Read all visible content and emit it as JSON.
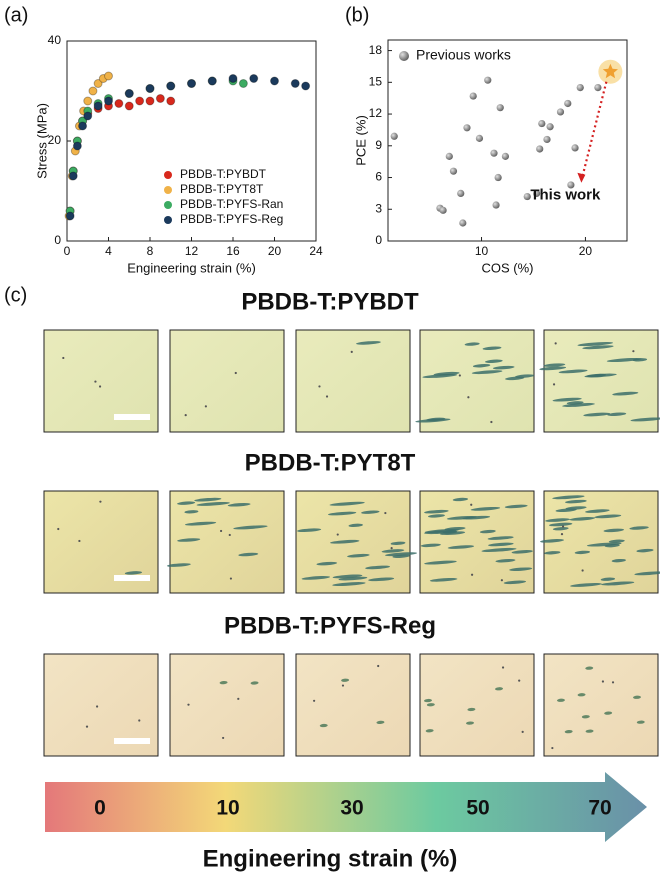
{
  "chart_data": [
    {
      "type": "scatter",
      "panel_label": "(a)",
      "x_label": "Engineering strain (%)",
      "y_label": "Stress (MPa)",
      "xlim": [
        0,
        24
      ],
      "xticks": [
        0,
        4,
        8,
        12,
        16,
        20,
        24
      ],
      "ylim": [
        0,
        40
      ],
      "yticks": [
        0,
        20,
        40
      ],
      "legend": "lower right",
      "series": [
        {
          "name": "PBDB-T:PYBDT",
          "color": "#d8281c",
          "x": [
            0.3,
            0.6,
            1,
            1.5,
            2,
            3,
            4,
            5,
            6,
            7,
            8,
            9,
            10
          ],
          "values": [
            6,
            14,
            20,
            24,
            25.5,
            26.5,
            27,
            27.5,
            27,
            28,
            28,
            28.5,
            28
          ]
        },
        {
          "name": "PBDB-T:PYT8T",
          "color": "#f0b248",
          "x": [
            0.2,
            0.5,
            0.8,
            1.2,
            1.6,
            2,
            2.5,
            3,
            3.5,
            4
          ],
          "values": [
            5,
            13,
            18,
            23,
            26,
            28,
            30,
            31.5,
            32.5,
            33
          ]
        },
        {
          "name": "PBDB-T:PYFS-Ran",
          "color": "#3cab62",
          "x": [
            0.3,
            0.6,
            1,
            1.5,
            2,
            3,
            4,
            6,
            8,
            10,
            12,
            14,
            16,
            17
          ],
          "values": [
            6,
            14,
            20,
            24,
            26,
            27.5,
            28.5,
            29.5,
            30.5,
            31,
            31.5,
            32,
            32,
            31.5
          ]
        },
        {
          "name": "PBDB-T:PYFS-Reg",
          "color": "#1b3a5c",
          "x": [
            0.3,
            0.6,
            1,
            1.5,
            2,
            3,
            4,
            6,
            8,
            10,
            12,
            14,
            16,
            18,
            20,
            22,
            23
          ],
          "values": [
            5,
            13,
            19,
            23,
            25,
            27,
            28,
            29.5,
            30.5,
            31,
            31.5,
            32,
            32.5,
            32.5,
            32,
            31.5,
            31
          ]
        }
      ]
    },
    {
      "type": "scatter",
      "panel_label": "(b)",
      "x_label": "COS (%)",
      "y_label": "PCE (%)",
      "xlim": [
        1,
        24
      ],
      "xticks": [
        10,
        20
      ],
      "ylim": [
        0,
        19
      ],
      "yticks": [
        0,
        3,
        6,
        9,
        12,
        15,
        18
      ],
      "legend": "upper left",
      "series": [
        {
          "name": "Previous works",
          "color": "#8a8a8a",
          "x": [
            1.6,
            6.0,
            6.3,
            6.9,
            7.3,
            8.0,
            8.2,
            8.6,
            9.2,
            9.8,
            10.6,
            11.2,
            11.4,
            11.6,
            11.8,
            12.3,
            14.4,
            15.3,
            15.6,
            15.8,
            16.3,
            16.6,
            17.6,
            18.3,
            18.6,
            19.0,
            19.5,
            21.2
          ],
          "values": [
            9.9,
            3.1,
            2.9,
            8.0,
            6.6,
            4.5,
            1.7,
            10.7,
            13.7,
            9.7,
            15.2,
            8.3,
            3.4,
            6.0,
            12.6,
            8.0,
            4.2,
            4.5,
            8.7,
            11.1,
            9.6,
            10.8,
            12.2,
            13.0,
            5.3,
            8.8,
            14.5,
            14.5
          ]
        },
        {
          "name": "This work",
          "color": "#f0a030",
          "marker": "star",
          "x": [
            22.4
          ],
          "values": [
            16.0
          ]
        }
      ]
    }
  ],
  "micrographs": {
    "panel_label": "(c)",
    "rows": [
      {
        "title": "PBDB-T:PYBDT",
        "color": "#d42418"
      },
      {
        "title": "PBDB-T:PYT8T",
        "color": "#f0a830"
      },
      {
        "title": "PBDB-T:PYFS-Reg",
        "color": "#14325a"
      }
    ]
  },
  "strain_bar": {
    "labels": [
      "0",
      "10",
      "30",
      "50",
      "70"
    ],
    "title": "Engineering strain (%)"
  }
}
